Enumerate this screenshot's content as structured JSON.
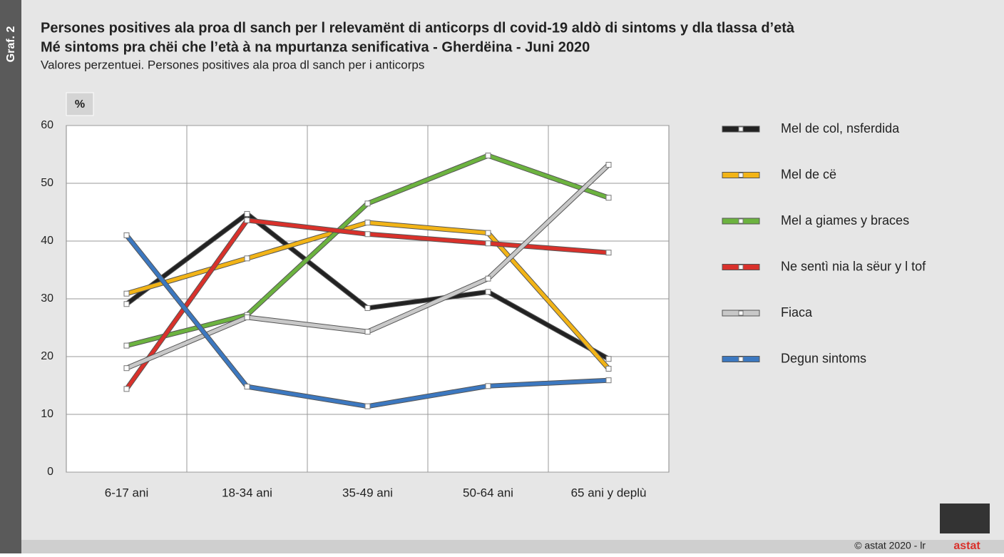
{
  "page": {
    "side_label": "Graf. 2",
    "footer": "© astat 2020 - lr",
    "logo": "astat"
  },
  "chart_data": {
    "type": "line",
    "title": [
      "Persones positives ala proa dl sanch per l relevamënt di anticorps dl covid-19 aldò di sintoms y dla tlassa d’età",
      "Mé sintoms pra chëi che l’età à na mpurtanza senificativa - Gherdëina - Juni 2020"
    ],
    "subtitle": "Valores perzentuei. Persones positives ala proa dl sanch per i anticorps",
    "y_unit": "%",
    "categories": [
      "6-17 ani",
      "18-34 ani",
      "35-49 ani",
      "50-64 ani",
      "65 ani y deplù"
    ],
    "series": [
      {
        "name": "Mel de col, nsferdida",
        "color": "#222222",
        "values": [
          29.1,
          44.7,
          28.4,
          31.2,
          19.6
        ]
      },
      {
        "name": "Mel de cë",
        "color": "#f2b417",
        "values": [
          30.9,
          37.0,
          43.2,
          41.4,
          17.9
        ]
      },
      {
        "name": "Mel a giames y braces",
        "color": "#6cb33f",
        "values": [
          21.9,
          27.2,
          46.5,
          54.8,
          47.5
        ]
      },
      {
        "name": "Ne sentì nia la sëur y l tof",
        "color": "#d9312b",
        "values": [
          14.4,
          43.6,
          41.2,
          39.6,
          38.0
        ]
      },
      {
        "name": "Fiaca",
        "color": "#c8c8c8",
        "values": [
          18.0,
          26.8,
          24.3,
          33.5,
          53.2
        ]
      },
      {
        "name": "Degun sintoms",
        "color": "#3c78c0",
        "values": [
          41.0,
          14.8,
          11.4,
          14.9,
          15.9
        ]
      }
    ],
    "ylim": [
      0,
      60
    ],
    "yticks": [
      0,
      10,
      20,
      30,
      40,
      50,
      60
    ],
    "grid": true,
    "legend": "right"
  }
}
